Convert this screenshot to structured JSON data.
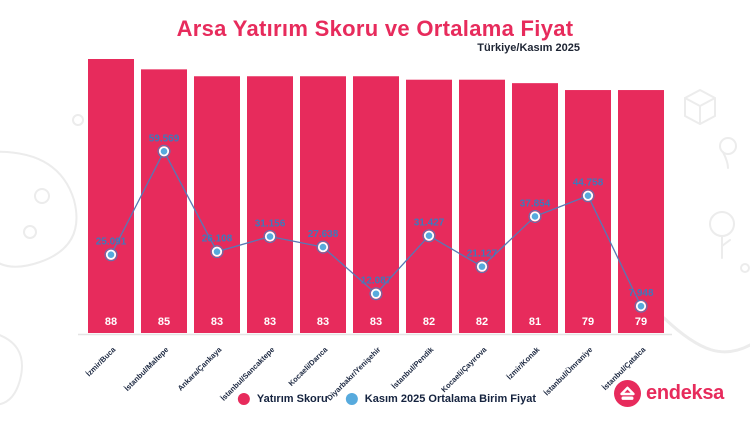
{
  "header": {
    "title": "Arsa Yatırım Skoru ve Ortalama Fiyat",
    "subtitle": "Türkiye/Kasım 2025"
  },
  "legend": {
    "score_label": "Yatırım Skoru",
    "price_label": "Kasım 2025 Ortalama Birim Fiyat"
  },
  "logo": {
    "text": "endeksa"
  },
  "colors": {
    "accent": "#e72b5c",
    "navy": "#1b2740",
    "line": "#5878b5",
    "dot": "#57aadd",
    "price_label": "#3f78bb"
  },
  "chart_data": {
    "type": "bar",
    "combo": "bar+line",
    "title": "Arsa Yatırım Skoru ve Ortalama Fiyat",
    "subtitle": "Türkiye/Kasım 2025",
    "categories": [
      "İzmir/Buca",
      "İstanbul/Maltepe",
      "Ankara/Çankaya",
      "İstanbul/Sancaktepe",
      "Kocaeli/Darıca",
      "Diyarbakır/Yenişehir",
      "İstanbul/Pendik",
      "Kocaeli/Çayırova",
      "İzmir/Konak",
      "İstanbul/Ümraniye",
      "İstanbul/Çatalca"
    ],
    "series": [
      {
        "name": "Yatırım Skoru",
        "type": "bar",
        "values": [
          88,
          85,
          83,
          83,
          83,
          83,
          82,
          82,
          81,
          79,
          79
        ]
      },
      {
        "name": "Kasım 2025 Ortalama Birim Fiyat",
        "type": "line",
        "values": [
          25091,
          59569,
          26108,
          31156,
          27638,
          12087,
          31427,
          21127,
          37854,
          44758,
          7948
        ],
        "labels": [
          "25.091",
          "59.569",
          "26.108",
          "31.156",
          "27.638",
          "12.087",
          "31.427",
          "21.127",
          "37.854",
          "44.758",
          "7.948"
        ]
      }
    ],
    "legend_position": "bottom",
    "grid": false
  }
}
